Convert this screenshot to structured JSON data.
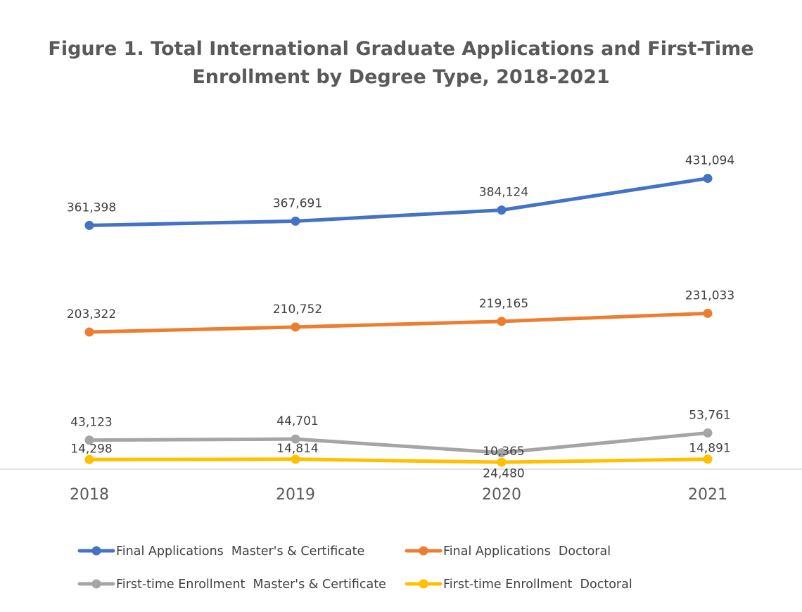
{
  "chart_data": {
    "type": "line",
    "title": "Figure 1. Total International Graduate Applications and First-Time Enrollment by Degree Type, 2018-2021",
    "title_lines": [
      "Figure 1. Total International Graduate Applications and First-Time",
      "Enrollment by Degree Type, 2018-2021"
    ],
    "x": [
      "2018",
      "2019",
      "2020",
      "2021"
    ],
    "grid": false,
    "legend_position": "bottom",
    "series": [
      {
        "name": "Final Applications  Master's & Certificate",
        "color": "#4472C4",
        "values": [
          361398,
          367691,
          384124,
          431094
        ],
        "labels": [
          "361,398",
          "367,691",
          "384,124",
          "431,094"
        ]
      },
      {
        "name": "Final Applications  Doctoral",
        "color": "#ED7D31",
        "values": [
          203322,
          210752,
          219165,
          231033
        ],
        "labels": [
          "203,322",
          "210,752",
          "219,165",
          "231,033"
        ]
      },
      {
        "name": "First-time Enrollment  Master's & Certificate",
        "color": "#A5A5A5",
        "values": [
          43123,
          44701,
          24480,
          53761
        ],
        "labels": [
          "43,123",
          "44,701",
          "24,480",
          "53,761"
        ]
      },
      {
        "name": "First-time Enrollment  Doctoral",
        "color": "#FFC000",
        "values": [
          14298,
          14814,
          10365,
          14891
        ],
        "labels": [
          "14,298",
          "14,814",
          "10,365",
          "14,891"
        ]
      }
    ]
  }
}
